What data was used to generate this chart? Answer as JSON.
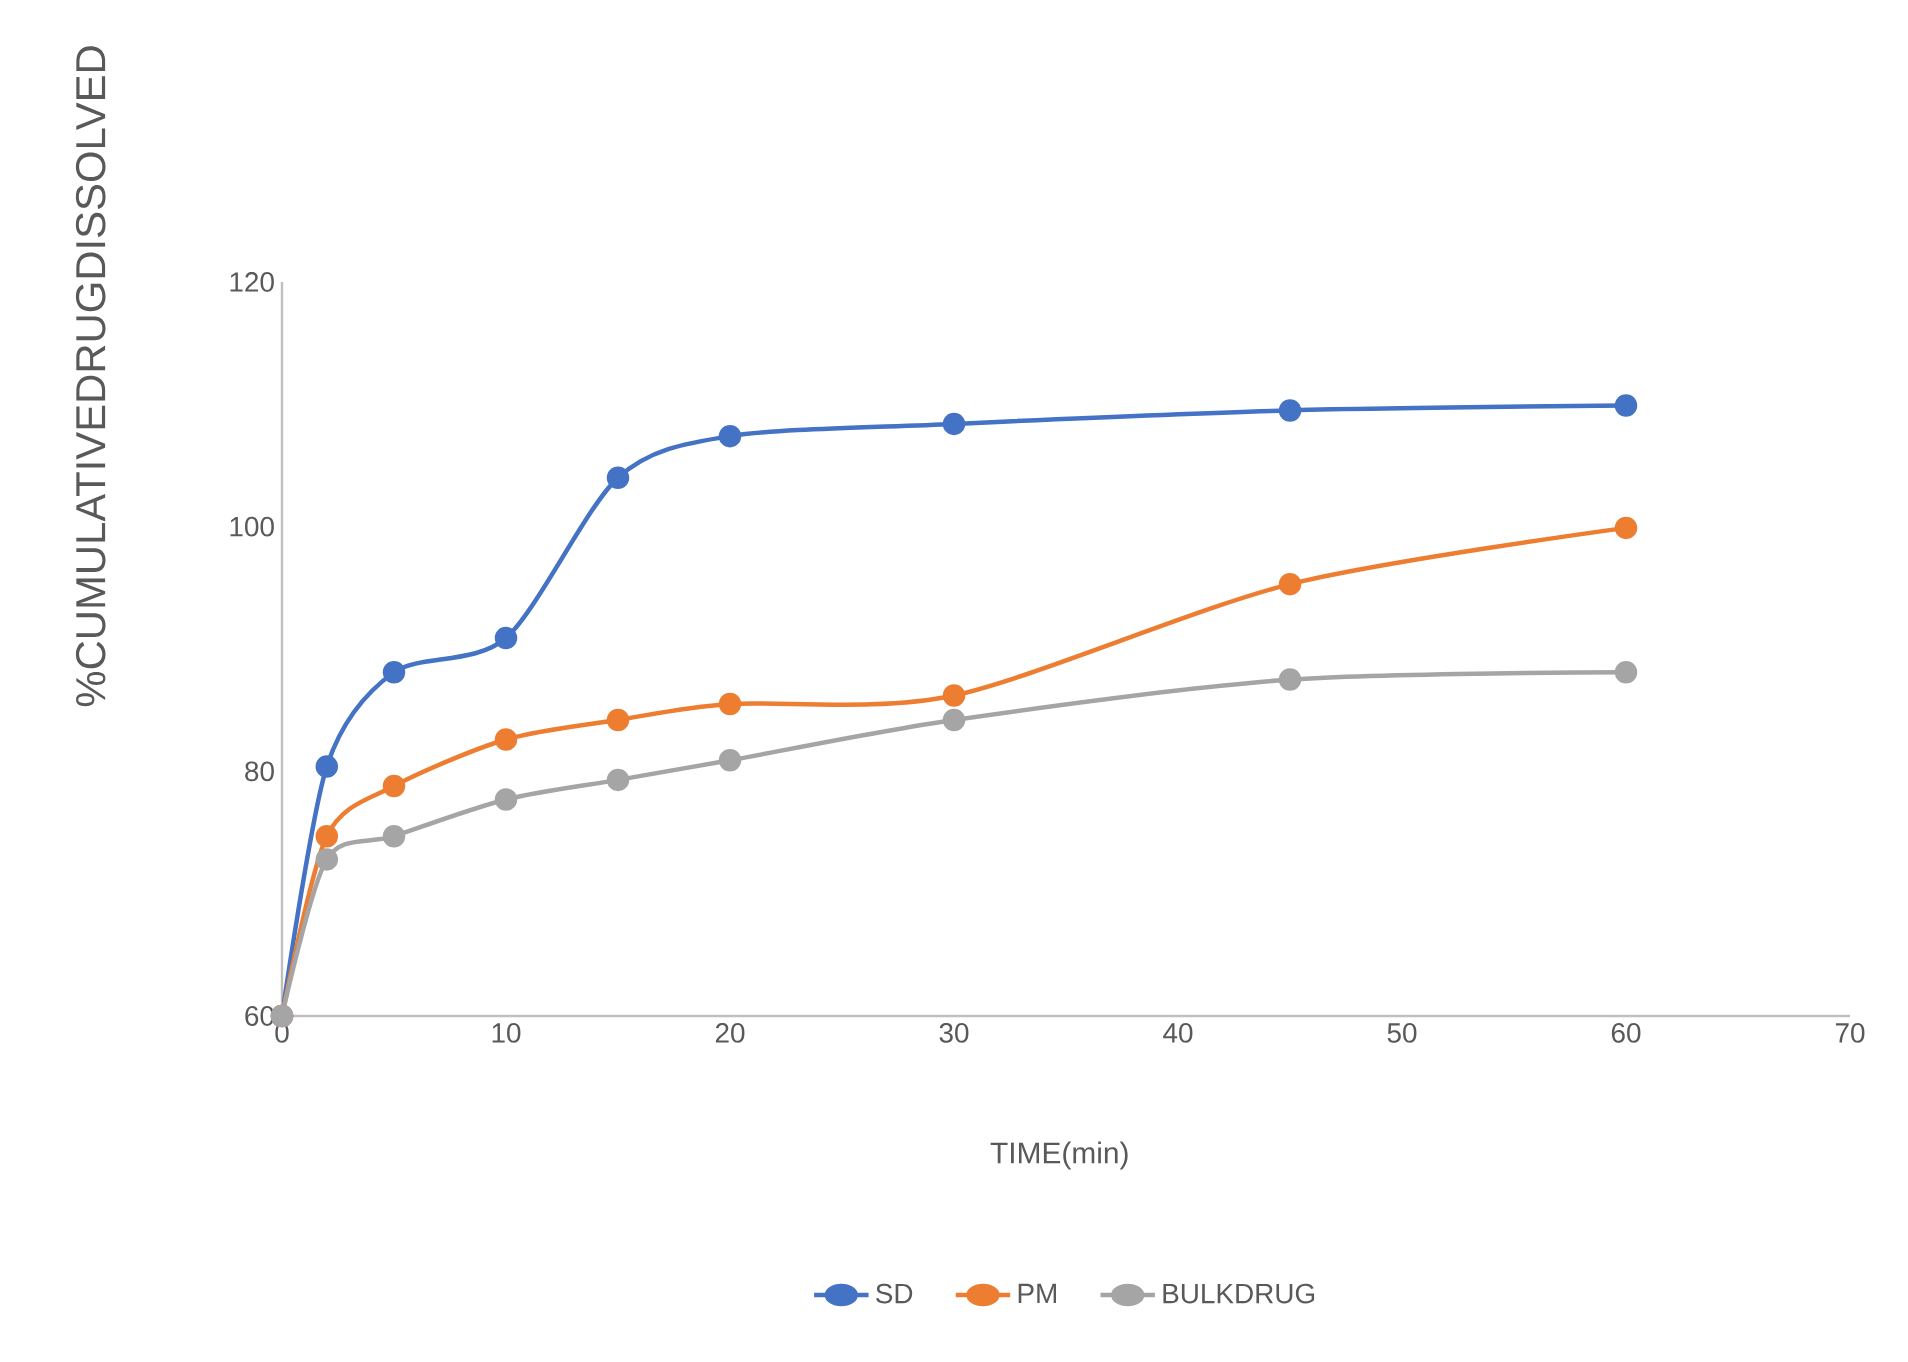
{
  "chart_data": {
    "type": "line",
    "xlabel": "TIME(min)",
    "ylabel": "%CUMULATIVEDRUGDISSOLVED",
    "x": [
      0,
      2,
      5,
      10,
      15,
      20,
      30,
      45,
      60
    ],
    "series": [
      {
        "name": "SD",
        "color": "#4472c4",
        "values": [
          60,
          80.4,
          88.1,
          90.9,
          104.0,
          107.4,
          108.4,
          109.5,
          109.9
        ]
      },
      {
        "name": "PM",
        "color": "#ed7d31",
        "values": [
          60,
          74.7,
          78.8,
          82.6,
          84.2,
          85.5,
          86.2,
          95.3,
          99.9
        ]
      },
      {
        "name": "BULKDRUG",
        "color": "#a5a5a5",
        "values": [
          60,
          72.8,
          74.7,
          77.7,
          79.3,
          80.9,
          84.2,
          87.5,
          88.1
        ]
      }
    ],
    "xlim": [
      0,
      70
    ],
    "xticks": [
      0,
      10,
      20,
      30,
      40,
      50,
      60,
      70
    ],
    "ylim": [
      60,
      120
    ],
    "yticks": [
      60,
      80,
      100,
      120
    ],
    "grid": false,
    "legend": "bottom",
    "marker": "circle",
    "line_style": "solid"
  }
}
